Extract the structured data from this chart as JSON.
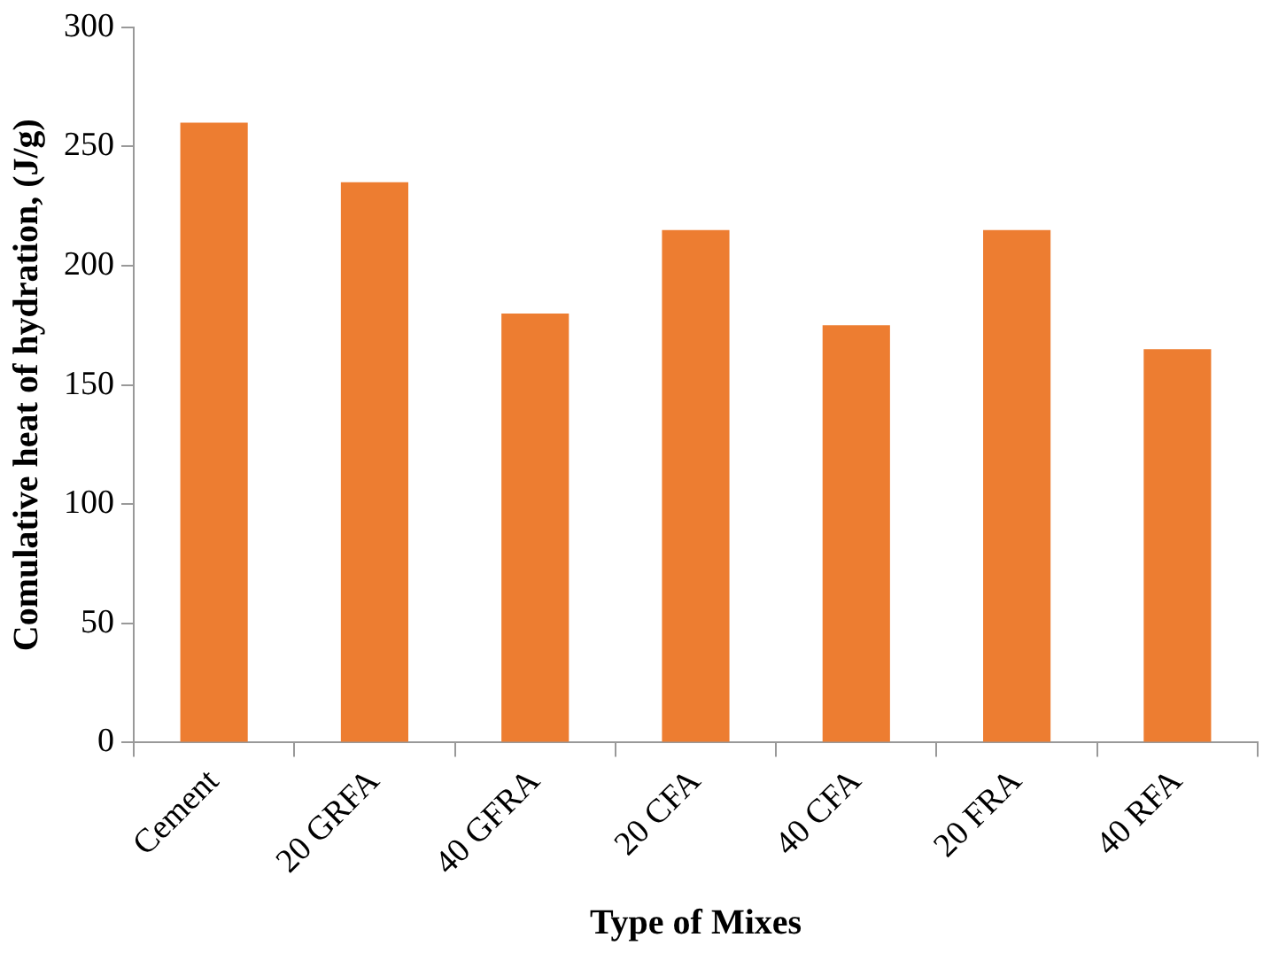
{
  "chart_data": {
    "type": "bar",
    "xlabel": "Type of Mixes",
    "ylabel": "Comulative heat of hydration, (J/g)",
    "categories": [
      "Cement",
      "20 GRFA",
      "40 GFRA",
      "20 CFA",
      "40 CFA",
      "20 FRA",
      "40 RFA"
    ],
    "values": [
      260,
      235,
      180,
      215,
      175,
      215,
      165
    ],
    "color": "#ed7d31",
    "ylim": [
      0,
      300
    ],
    "yticks": [
      0,
      50,
      100,
      150,
      200,
      250,
      300
    ],
    "grid": false,
    "legend": false
  }
}
